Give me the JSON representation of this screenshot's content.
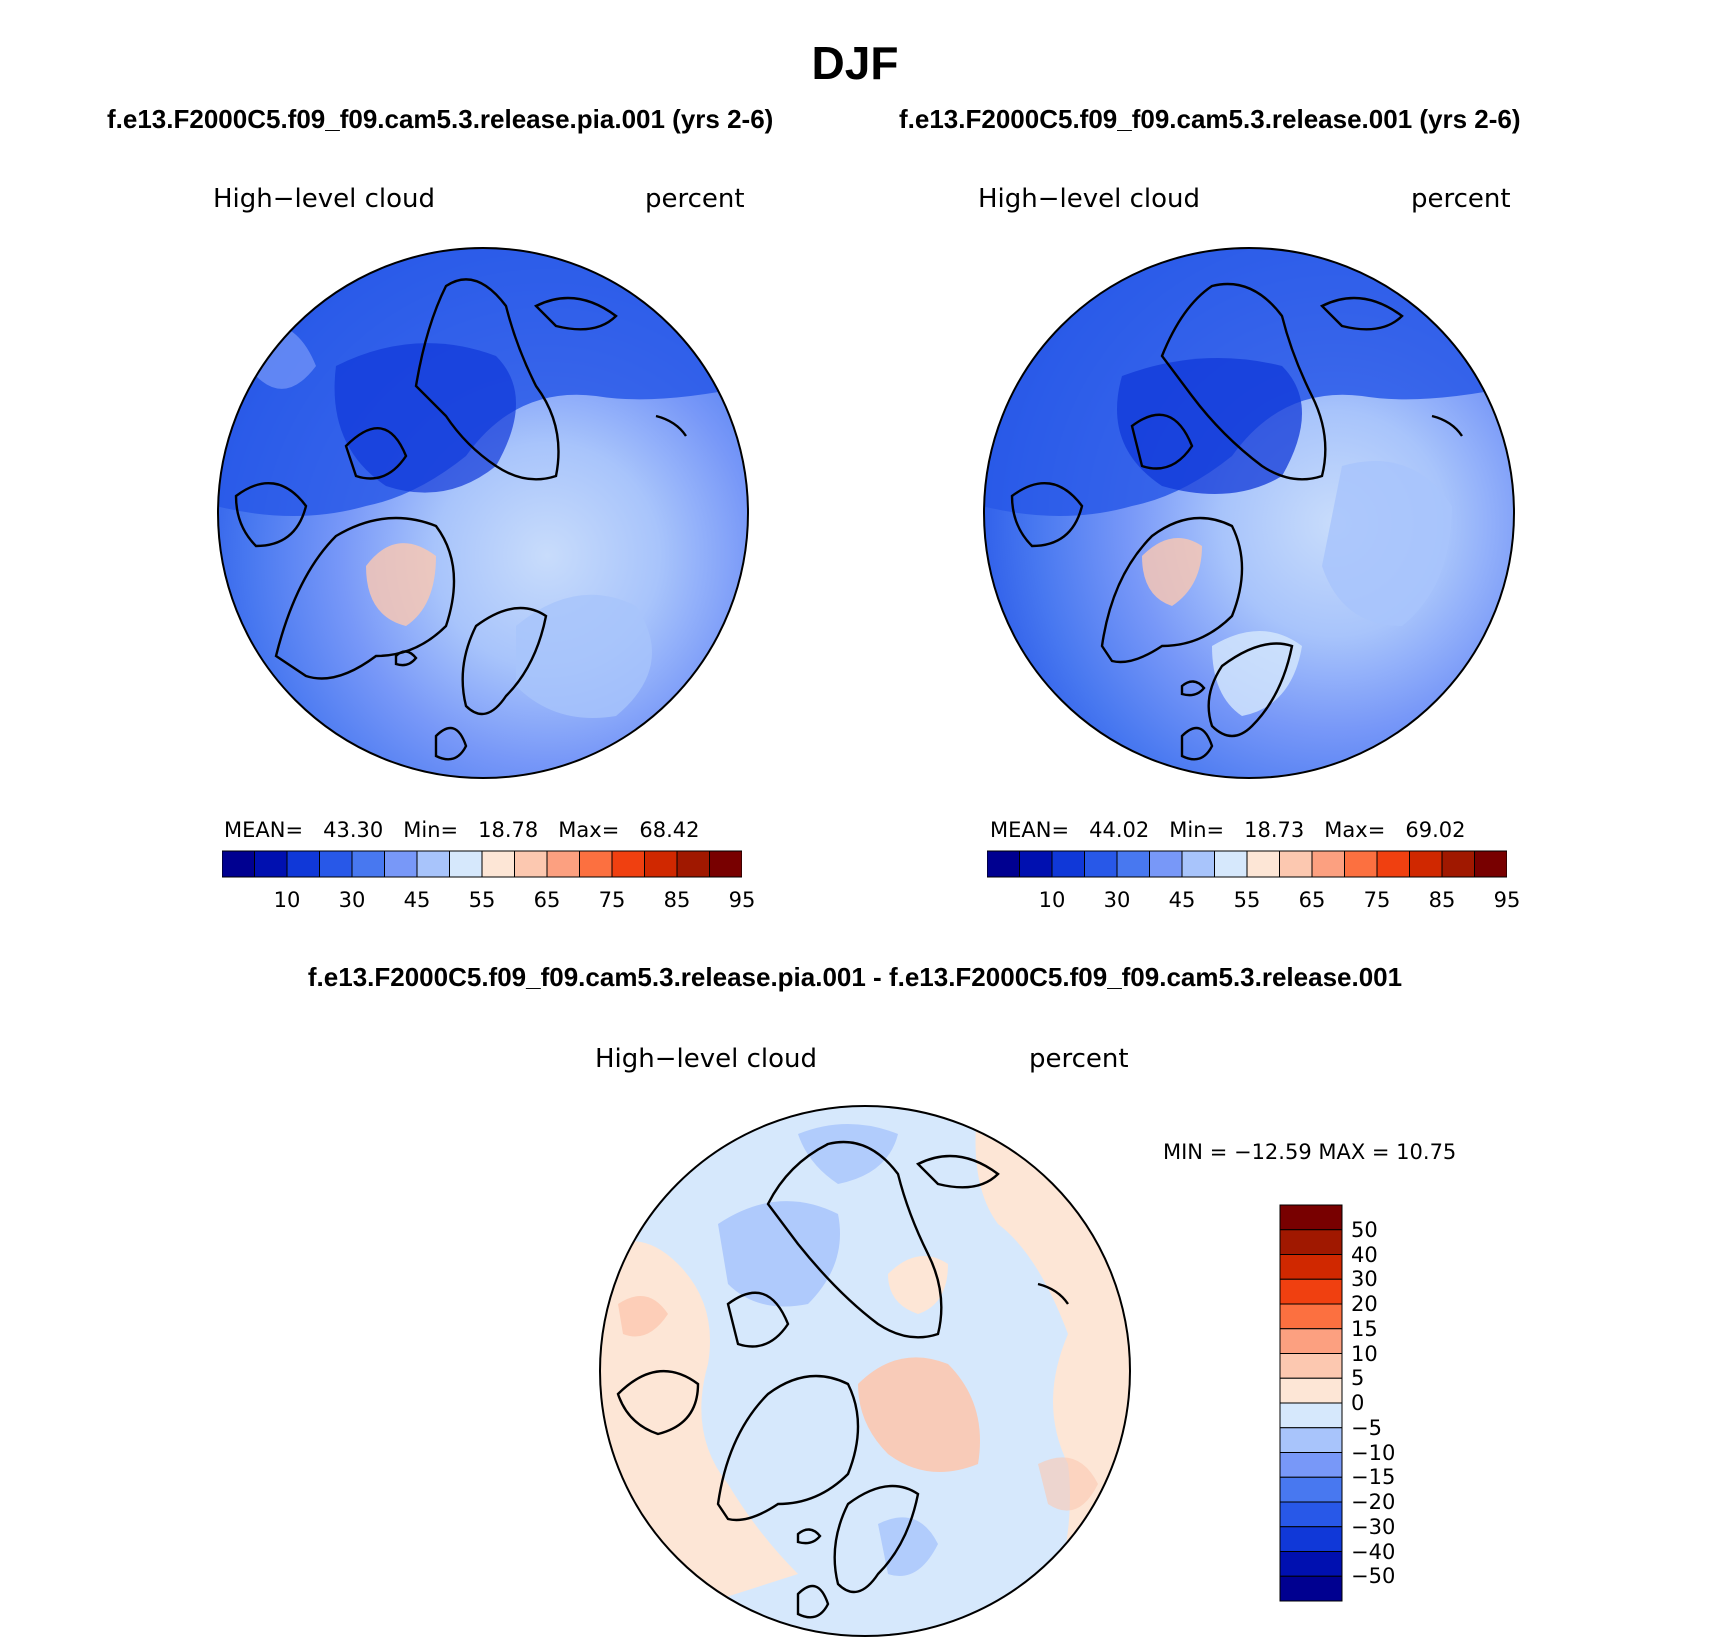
{
  "title": "DJF",
  "panels": [
    {
      "case": "f.e13.F2000C5.f09_f09.cam5.3.release.pia.001 (yrs 2-6)",
      "variable": "High−level cloud",
      "units": "percent",
      "stats": {
        "mean_label": "MEAN=",
        "mean": "43.30",
        "min_label": "Min=",
        "min": "18.78",
        "max_label": "Max=",
        "max": "68.42"
      }
    },
    {
      "case": "f.e13.F2000C5.f09_f09.cam5.3.release.001 (yrs 2-6)",
      "variable": "High−level cloud",
      "units": "percent",
      "stats": {
        "mean_label": "MEAN=",
        "mean": "44.02",
        "min_label": "Min=",
        "min": "18.73",
        "max_label": "Max=",
        "max": "69.02"
      }
    }
  ],
  "colorbar_top": {
    "colors": [
      "#000090",
      "#0010b0",
      "#1038d8",
      "#2858e8",
      "#4878f0",
      "#7898f8",
      "#a8c4fb",
      "#d6e8fc",
      "#fde6d6",
      "#fcc8b0",
      "#fca080",
      "#fc7040",
      "#f04010",
      "#d02800",
      "#a01800",
      "#780000"
    ],
    "labels": [
      "10",
      "30",
      "45",
      "55",
      "65",
      "75",
      "85",
      "95"
    ]
  },
  "diff_panel": {
    "title": "f.e13.F2000C5.f09_f09.cam5.3.release.pia.001 - f.e13.F2000C5.f09_f09.cam5.3.release.001",
    "variable": "High−level cloud",
    "units": "percent",
    "minmax": "MIN = −12.59 MAX =   10.75"
  },
  "colorbar_diff": {
    "colors": [
      "#780000",
      "#a01800",
      "#d02800",
      "#f04010",
      "#fc7040",
      "#fca080",
      "#fcc8b0",
      "#fde6d6",
      "#d6e8fc",
      "#a8c4fb",
      "#7898f8",
      "#4878f0",
      "#2858e8",
      "#1038d8",
      "#0010b0",
      "#000090"
    ],
    "labels": [
      "50",
      "40",
      "30",
      "20",
      "15",
      "10",
      "5",
      "0",
      "−5",
      "−10",
      "−15",
      "−20",
      "−30",
      "−40",
      "−50"
    ]
  }
}
